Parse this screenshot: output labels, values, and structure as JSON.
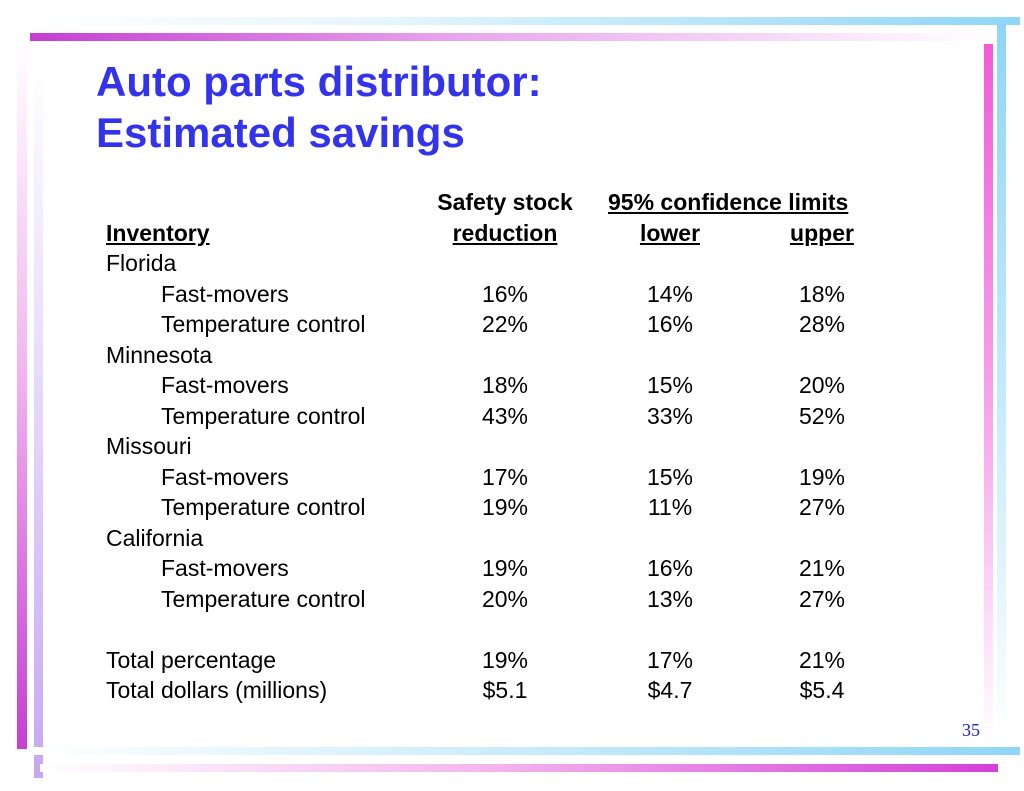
{
  "title": {
    "line1": "Auto parts distributor:",
    "line2": "Estimated savings"
  },
  "table": {
    "header_top": {
      "col1": "Safety stock",
      "col2": "95% confidence limits"
    },
    "header": {
      "inventory": "Inventory",
      "col1": "reduction",
      "col2": "lower",
      "col3": "upper"
    },
    "rows": [
      {
        "label": "Florida",
        "group": true,
        "reduction": "",
        "lower": "",
        "upper": ""
      },
      {
        "label": "Fast-movers",
        "group": false,
        "reduction": "16%",
        "lower": "14%",
        "upper": "18%"
      },
      {
        "label": "Temperature control",
        "group": false,
        "reduction": "22%",
        "lower": "16%",
        "upper": "28%"
      },
      {
        "label": "Minnesota",
        "group": true,
        "reduction": "",
        "lower": "",
        "upper": ""
      },
      {
        "label": "Fast-movers",
        "group": false,
        "reduction": "18%",
        "lower": "15%",
        "upper": "20%"
      },
      {
        "label": "Temperature control",
        "group": false,
        "reduction": "43%",
        "lower": "33%",
        "upper": "52%"
      },
      {
        "label": "Missouri",
        "group": true,
        "reduction": "",
        "lower": "",
        "upper": ""
      },
      {
        "label": "Fast-movers",
        "group": false,
        "reduction": "17%",
        "lower": "15%",
        "upper": "19%"
      },
      {
        "label": "Temperature control",
        "group": false,
        "reduction": "19%",
        "lower": "11%",
        "upper": "27%"
      },
      {
        "label": "California",
        "group": true,
        "reduction": "",
        "lower": "",
        "upper": ""
      },
      {
        "label": "Fast-movers",
        "group": false,
        "reduction": "19%",
        "lower": "16%",
        "upper": "21%"
      },
      {
        "label": "Temperature control",
        "group": false,
        "reduction": "20%",
        "lower": "13%",
        "upper": "27%"
      }
    ],
    "totals": [
      {
        "label": "Total percentage",
        "reduction": "19%",
        "lower": "17%",
        "upper": "21%"
      },
      {
        "label": "Total dollars (millions)",
        "reduction": "$5.1",
        "lower": "$4.7",
        "upper": "$5.4"
      }
    ]
  },
  "page_number": "35"
}
